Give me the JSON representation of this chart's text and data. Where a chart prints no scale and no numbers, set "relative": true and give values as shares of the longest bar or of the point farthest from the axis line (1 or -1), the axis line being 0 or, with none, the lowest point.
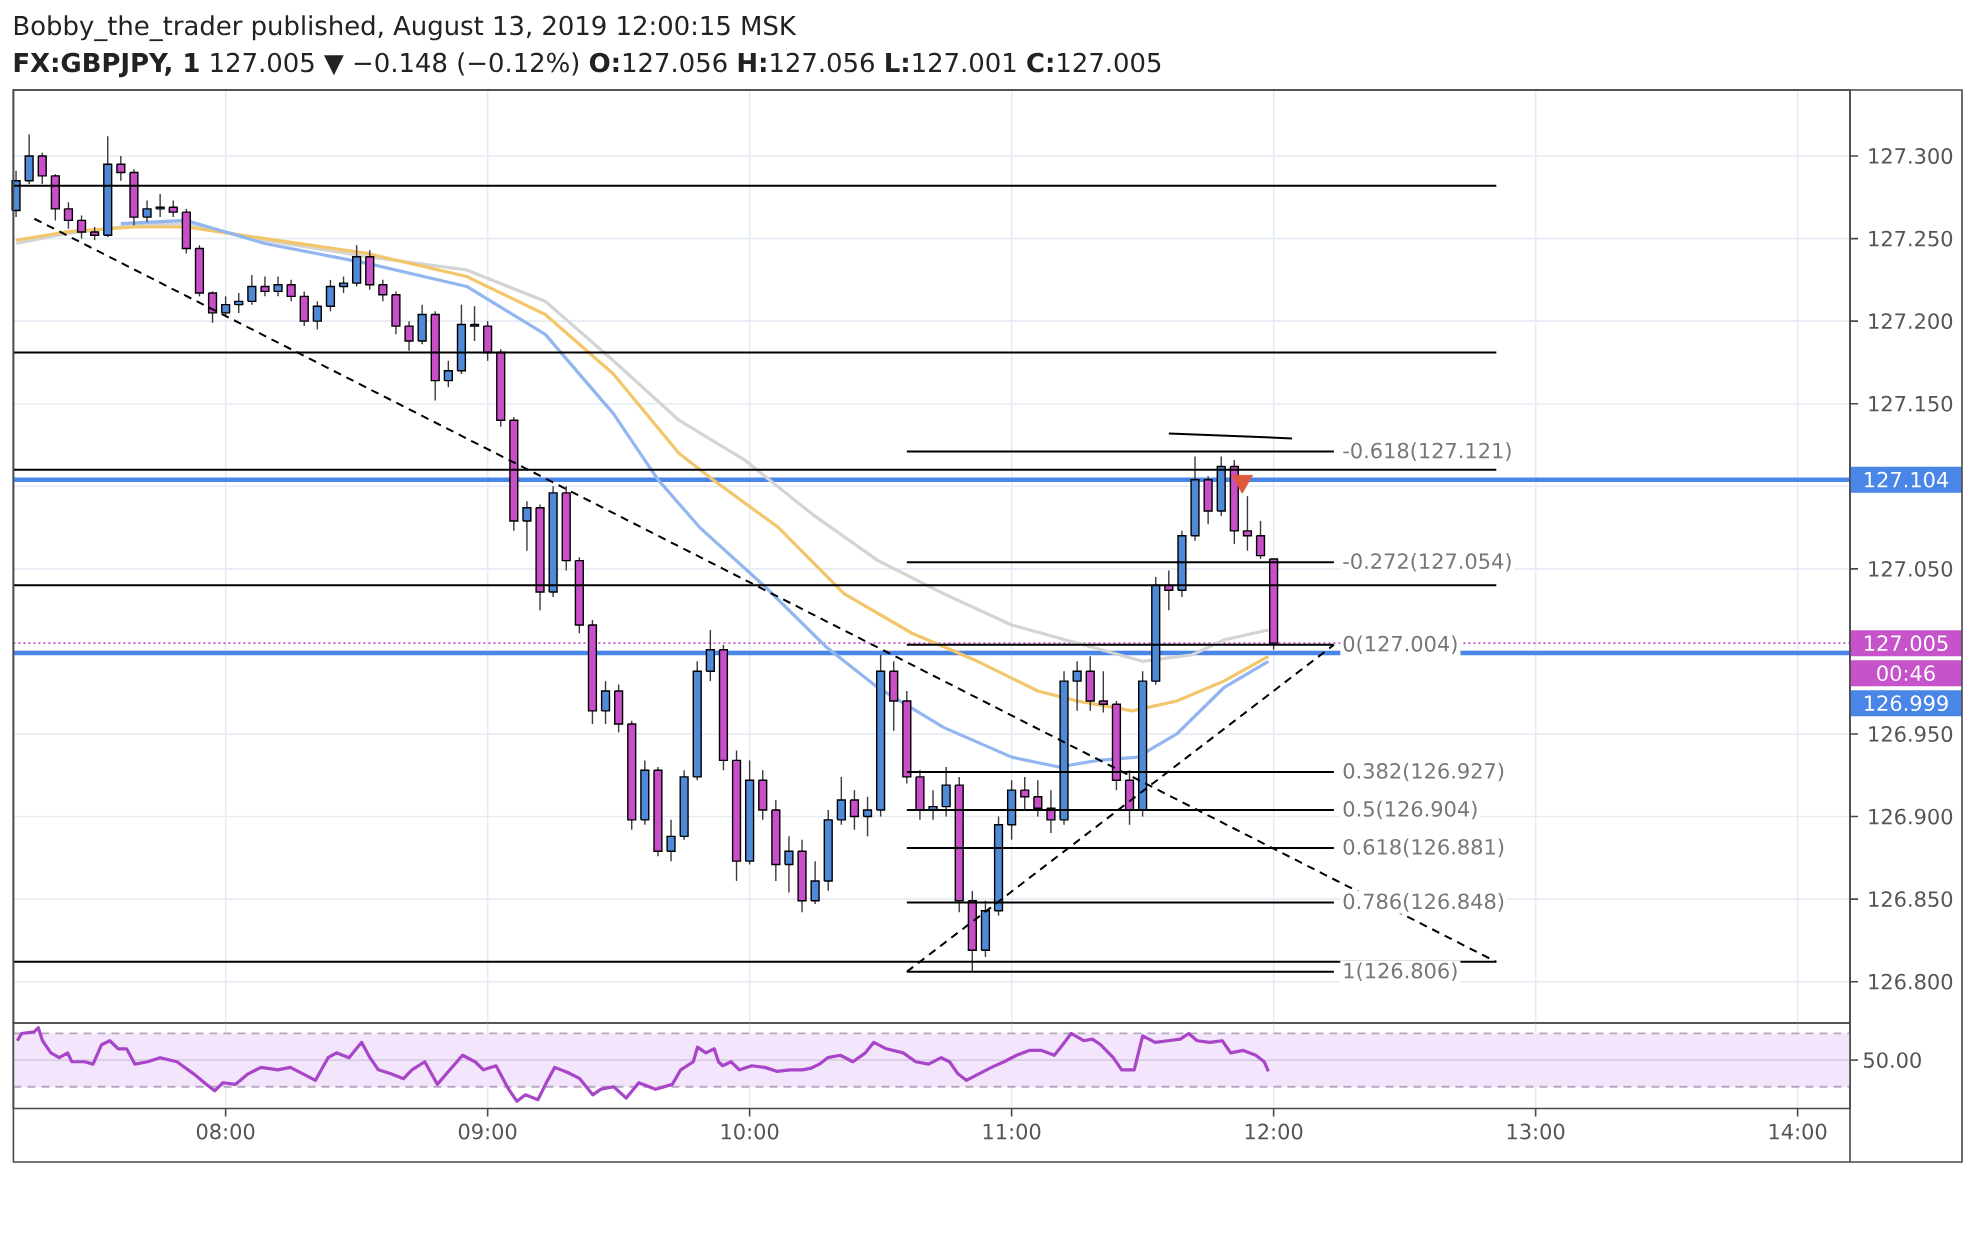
{
  "chart_data": [
    {
      "type": "candlestick",
      "title": "Bobby_the_trader published, August 13, 2019 12:00:15 MSK",
      "subtitle": "**FX:GBPJPY, 1** 127.005 ▼ −0.148 (−0.12%) **O:**127.056 **H:**127.056 **L:**127.001 **C:**127.005",
      "x": [
        7.2,
        7.25,
        7.3,
        7.35,
        7.4,
        7.45,
        7.5,
        7.55,
        7.6,
        7.65,
        7.7,
        7.75,
        7.8,
        7.85,
        7.9,
        7.95,
        8.0,
        8.05,
        8.1,
        8.15,
        8.2,
        8.25,
        8.3,
        8.35,
        8.4,
        8.45,
        8.5,
        8.55,
        8.6,
        8.65,
        8.7,
        8.75,
        8.8,
        8.85,
        8.9,
        8.95,
        9.0,
        9.05,
        9.1,
        9.15,
        9.2,
        9.25,
        9.3,
        9.35,
        9.4,
        9.45,
        9.5,
        9.55,
        9.6,
        9.65,
        9.7,
        9.75,
        9.8,
        9.85,
        9.9,
        9.95,
        10.0,
        10.05,
        10.1,
        10.15,
        10.2,
        10.25,
        10.3,
        10.35,
        10.4,
        10.45,
        10.5,
        10.55,
        10.6,
        10.65,
        10.7,
        10.75,
        10.8,
        10.85,
        10.9,
        10.95,
        11.0,
        11.05,
        11.1,
        11.15,
        11.2,
        11.25,
        11.3,
        11.35,
        11.4,
        11.45,
        11.5,
        11.55,
        11.6,
        11.65,
        11.7,
        11.75,
        11.8,
        11.85,
        11.9,
        11.95,
        12.0
      ],
      "ohlc": [
        [
          127.267,
          127.291,
          127.263,
          127.285
        ],
        [
          127.285,
          127.313,
          127.283,
          127.3
        ],
        [
          127.3,
          127.302,
          127.283,
          127.288
        ],
        [
          127.288,
          127.289,
          127.261,
          127.268
        ],
        [
          127.268,
          127.272,
          127.256,
          127.261
        ],
        [
          127.261,
          127.264,
          127.25,
          127.254
        ],
        [
          127.254,
          127.257,
          127.249,
          127.252
        ],
        [
          127.252,
          127.312,
          127.251,
          127.295
        ],
        [
          127.295,
          127.3,
          127.285,
          127.29
        ],
        [
          127.29,
          127.292,
          127.258,
          127.263
        ],
        [
          127.263,
          127.273,
          127.26,
          127.268
        ],
        [
          127.268,
          127.277,
          127.263,
          127.269
        ],
        [
          127.269,
          127.273,
          127.263,
          127.266
        ],
        [
          127.266,
          127.268,
          127.241,
          127.244
        ],
        [
          127.244,
          127.246,
          127.215,
          127.217
        ],
        [
          127.217,
          127.218,
          127.199,
          127.205
        ],
        [
          127.205,
          127.215,
          127.203,
          127.21
        ],
        [
          127.21,
          127.217,
          127.205,
          127.212
        ],
        [
          127.212,
          127.228,
          127.21,
          127.221
        ],
        [
          127.221,
          127.227,
          127.215,
          127.218
        ],
        [
          127.218,
          127.227,
          127.215,
          127.222
        ],
        [
          127.222,
          127.225,
          127.212,
          127.215
        ],
        [
          127.215,
          127.218,
          127.197,
          127.2
        ],
        [
          127.2,
          127.212,
          127.195,
          127.209
        ],
        [
          127.209,
          127.225,
          127.206,
          127.221
        ],
        [
          127.221,
          127.227,
          127.217,
          127.223
        ],
        [
          127.223,
          127.246,
          127.221,
          127.239
        ],
        [
          127.239,
          127.243,
          127.219,
          127.222
        ],
        [
          127.222,
          127.225,
          127.212,
          127.216
        ],
        [
          127.216,
          127.218,
          127.192,
          127.197
        ],
        [
          127.197,
          127.2,
          127.182,
          127.188
        ],
        [
          127.188,
          127.21,
          127.186,
          127.204
        ],
        [
          127.204,
          127.206,
          127.152,
          127.164
        ],
        [
          127.164,
          127.176,
          127.16,
          127.17
        ],
        [
          127.17,
          127.21,
          127.168,
          127.198
        ],
        [
          127.198,
          127.209,
          127.188,
          127.197
        ],
        [
          127.197,
          127.2,
          127.176,
          127.181
        ],
        [
          127.181,
          127.183,
          127.136,
          127.14
        ],
        [
          127.14,
          127.142,
          127.073,
          127.079
        ],
        [
          127.079,
          127.091,
          127.061,
          127.087
        ],
        [
          127.087,
          127.089,
          127.025,
          127.036
        ],
        [
          127.036,
          127.1,
          127.033,
          127.096
        ],
        [
          127.096,
          127.1,
          127.049,
          127.055
        ],
        [
          127.055,
          127.057,
          127.011,
          127.016
        ],
        [
          127.016,
          127.019,
          126.956,
          126.964
        ],
        [
          126.964,
          126.982,
          126.956,
          126.976
        ],
        [
          126.976,
          126.98,
          126.951,
          126.956
        ],
        [
          126.956,
          126.958,
          126.892,
          126.898
        ],
        [
          126.898,
          126.934,
          126.895,
          126.928
        ],
        [
          126.928,
          126.93,
          126.876,
          126.879
        ],
        [
          126.879,
          126.898,
          126.873,
          126.888
        ],
        [
          126.888,
          126.928,
          126.886,
          126.924
        ],
        [
          126.924,
          126.994,
          126.922,
          126.988
        ],
        [
          126.988,
          127.013,
          126.982,
          127.001
        ],
        [
          127.001,
          127.004,
          126.928,
          126.934
        ],
        [
          126.934,
          126.94,
          126.861,
          126.873
        ],
        [
          126.873,
          126.934,
          126.871,
          126.922
        ],
        [
          126.922,
          126.928,
          126.898,
          126.904
        ],
        [
          126.904,
          126.91,
          126.861,
          126.871
        ],
        [
          126.871,
          126.888,
          126.854,
          126.879
        ],
        [
          126.879,
          126.886,
          126.842,
          126.849
        ],
        [
          126.849,
          126.873,
          126.847,
          126.861
        ],
        [
          126.861,
          126.904,
          126.855,
          126.898
        ],
        [
          126.898,
          126.924,
          126.895,
          126.91
        ],
        [
          126.91,
          126.916,
          126.892,
          126.9
        ],
        [
          126.9,
          126.912,
          126.888,
          126.904
        ],
        [
          126.904,
          126.998,
          126.9,
          126.988
        ],
        [
          126.988,
          126.994,
          126.952,
          126.97
        ],
        [
          126.97,
          126.976,
          126.92,
          126.924
        ],
        [
          126.924,
          126.928,
          126.898,
          126.904
        ],
        [
          126.904,
          126.916,
          126.898,
          126.906
        ],
        [
          126.906,
          126.93,
          126.9,
          126.919
        ],
        [
          126.919,
          126.924,
          126.842,
          126.849
        ],
        [
          126.849,
          126.855,
          126.806,
          126.819
        ],
        [
          126.819,
          126.849,
          126.815,
          126.843
        ],
        [
          126.843,
          126.9,
          126.84,
          126.895
        ],
        [
          126.895,
          126.922,
          126.886,
          126.916
        ],
        [
          126.916,
          126.924,
          126.904,
          126.912
        ],
        [
          126.912,
          126.922,
          126.9,
          126.905
        ],
        [
          126.905,
          126.916,
          126.89,
          126.898
        ],
        [
          126.898,
          126.988,
          126.895,
          126.982
        ],
        [
          126.982,
          126.994,
          126.964,
          126.988
        ],
        [
          126.988,
          126.997,
          126.964,
          126.97
        ],
        [
          126.97,
          126.988,
          126.963,
          126.968
        ],
        [
          126.968,
          126.97,
          126.916,
          126.922
        ],
        [
          126.922,
          126.928,
          126.895,
          126.904
        ],
        [
          126.904,
          126.988,
          126.9,
          126.982
        ],
        [
          126.982,
          127.045,
          126.98,
          127.04
        ],
        [
          127.04,
          127.049,
          127.025,
          127.037
        ],
        [
          127.037,
          127.073,
          127.033,
          127.07
        ],
        [
          127.07,
          127.118,
          127.067,
          127.104
        ],
        [
          127.104,
          127.106,
          127.077,
          127.085
        ],
        [
          127.085,
          127.118,
          127.082,
          127.112
        ],
        [
          127.112,
          127.116,
          127.065,
          127.073
        ],
        [
          127.073,
          127.094,
          127.061,
          127.07
        ],
        [
          127.07,
          127.079,
          127.056,
          127.058
        ],
        [
          127.056,
          127.056,
          127.001,
          127.005
        ]
      ],
      "colors": [
        "#4f8ad9",
        "#4f8ad9",
        "#c84fc8",
        "#c84fc8",
        "#c84fc8",
        "#c84fc8",
        "#c84fc8",
        "#4f8ad9",
        "#c84fc8",
        "#c84fc8",
        "#4f8ad9",
        "#4f8ad9",
        "#c84fc8",
        "#c84fc8",
        "#c84fc8",
        "#c84fc8",
        "#4f8ad9",
        "#4f8ad9",
        "#4f8ad9",
        "#c84fc8",
        "#4f8ad9",
        "#c84fc8",
        "#c84fc8",
        "#4f8ad9",
        "#4f8ad9",
        "#4f8ad9",
        "#4f8ad9",
        "#c84fc8",
        "#c84fc8",
        "#c84fc8",
        "#c84fc8",
        "#4f8ad9",
        "#c84fc8",
        "#4f8ad9",
        "#4f8ad9",
        "#c84fc8",
        "#c84fc8",
        "#c84fc8",
        "#c84fc8",
        "#4f8ad9",
        "#c84fc8",
        "#4f8ad9",
        "#c84fc8",
        "#c84fc8",
        "#c84fc8",
        "#4f8ad9",
        "#c84fc8",
        "#c84fc8",
        "#4f8ad9",
        "#c84fc8",
        "#4f8ad9",
        "#4f8ad9",
        "#4f8ad9",
        "#4f8ad9",
        "#c84fc8",
        "#c84fc8",
        "#4f8ad9",
        "#c84fc8",
        "#c84fc8",
        "#4f8ad9",
        "#c84fc8",
        "#4f8ad9",
        "#4f8ad9",
        "#4f8ad9",
        "#c84fc8",
        "#4f8ad9",
        "#4f8ad9",
        "#c84fc8",
        "#c84fc8",
        "#c84fc8",
        "#4f8ad9",
        "#4f8ad9",
        "#c84fc8",
        "#c84fc8",
        "#4f8ad9",
        "#4f8ad9",
        "#4f8ad9",
        "#c84fc8",
        "#c84fc8",
        "#c84fc8",
        "#4f8ad9",
        "#4f8ad9",
        "#c84fc8",
        "#c84fc8",
        "#c84fc8",
        "#c84fc8",
        "#4f8ad9",
        "#4f8ad9",
        "#c84fc8",
        "#4f8ad9",
        "#4f8ad9",
        "#c84fc8",
        "#4f8ad9",
        "#c84fc8",
        "#c84fc8",
        "#c84fc8",
        "#c84fc8"
      ],
      "series": [
        {
          "type": "line",
          "color": "#d4d4d4",
          "x": [
            7.2,
            7.39,
            7.65,
            7.85,
            8.15,
            8.54,
            8.92,
            9.22,
            9.48,
            9.73,
            9.98,
            10.24,
            10.49,
            10.74,
            11.0,
            11.25,
            11.5,
            11.69,
            11.81,
            11.98
          ],
          "values": [
            127.247,
            127.253,
            127.258,
            127.259,
            127.249,
            127.239,
            127.231,
            127.212,
            127.176,
            127.14,
            127.116,
            127.083,
            127.055,
            127.035,
            127.016,
            127.005,
            126.994,
            126.998,
            127.007,
            127.013
          ]
        },
        {
          "type": "line",
          "color": "#f3c66b",
          "x": [
            7.2,
            7.39,
            7.65,
            7.85,
            8.15,
            8.54,
            8.92,
            9.22,
            9.48,
            9.73,
            9.86,
            10.11,
            10.36,
            10.62,
            10.87,
            11.1,
            11.25,
            11.46,
            11.63,
            11.81,
            11.98
          ],
          "values": [
            127.249,
            127.254,
            127.257,
            127.257,
            127.25,
            127.241,
            127.227,
            127.204,
            127.168,
            127.12,
            127.104,
            127.075,
            127.035,
            127.011,
            126.994,
            126.976,
            126.97,
            126.964,
            126.97,
            126.982,
            126.997
          ]
        },
        {
          "type": "line",
          "color": "#92b6f0",
          "x": [
            7.6,
            7.85,
            8.15,
            8.54,
            8.92,
            9.22,
            9.48,
            9.65,
            9.81,
            10.06,
            10.29,
            10.49,
            10.74,
            11.0,
            11.18,
            11.33,
            11.48,
            11.63,
            11.81,
            11.98
          ],
          "values": [
            127.259,
            127.261,
            127.247,
            127.235,
            127.221,
            127.192,
            127.144,
            127.104,
            127.075,
            127.039,
            127.003,
            126.978,
            126.954,
            126.936,
            126.93,
            126.934,
            126.936,
            126.95,
            126.978,
            126.994
          ]
        },
        {
          "type": "line",
          "color": "#000000",
          "x": [
            7.19,
            12.85
          ],
          "values": [
            127.282,
            127.282
          ]
        },
        {
          "type": "line",
          "color": "#000000",
          "x": [
            7.19,
            12.85
          ],
          "values": [
            127.181,
            127.181
          ]
        },
        {
          "type": "line",
          "color": "#000000",
          "x": [
            7.19,
            12.85
          ],
          "values": [
            127.11,
            127.11
          ]
        },
        {
          "type": "line",
          "color": "#000000",
          "x": [
            7.19,
            12.85
          ],
          "values": [
            127.04,
            127.04
          ]
        },
        {
          "type": "line",
          "color": "#000000",
          "x": [
            7.19,
            12.85
          ],
          "values": [
            126.812,
            126.812
          ]
        },
        {
          "type": "line",
          "name": "-0.618(127.121)",
          "color": "#000000",
          "x": [
            10.6,
            12.23
          ],
          "values": [
            127.121,
            127.121
          ]
        },
        {
          "type": "line",
          "name": "-0.272(127.054)",
          "color": "#000000",
          "x": [
            10.6,
            12.23
          ],
          "values": [
            127.054,
            127.054
          ]
        },
        {
          "type": "line",
          "name": "0(127.004)",
          "color": "#000000",
          "x": [
            10.6,
            12.23
          ],
          "values": [
            127.004,
            127.004
          ]
        },
        {
          "type": "line",
          "name": "0.382(126.927)",
          "color": "#000000",
          "x": [
            10.6,
            12.23
          ],
          "values": [
            126.927,
            126.927
          ]
        },
        {
          "type": "line",
          "name": "0.5(126.904)",
          "color": "#000000",
          "x": [
            10.6,
            12.23
          ],
          "values": [
            126.904,
            126.904
          ]
        },
        {
          "type": "line",
          "name": "0.618(126.881)",
          "color": "#000000",
          "x": [
            10.6,
            12.23
          ],
          "values": [
            126.881,
            126.881
          ]
        },
        {
          "type": "line",
          "name": "0.786(126.848)",
          "color": "#000000",
          "x": [
            10.6,
            12.23
          ],
          "values": [
            126.848,
            126.848
          ]
        },
        {
          "type": "line",
          "name": "1(126.806)",
          "color": "#000000",
          "x": [
            10.6,
            12.23
          ],
          "values": [
            126.806,
            126.806
          ]
        },
        {
          "type": "line",
          "color": "#000000",
          "x": [
            11.6,
            12.07
          ],
          "values": [
            127.132,
            127.129
          ]
        },
        {
          "type": "line",
          "color": "#000000",
          "line_style": "dashed",
          "x": [
            7.27,
            12.85
          ],
          "values": [
            127.262,
            126.812
          ]
        },
        {
          "type": "line",
          "color": "#000000",
          "line_style": "dashed",
          "x": [
            10.6,
            12.23
          ],
          "values": [
            126.806,
            127.004
          ]
        },
        {
          "type": "scatter",
          "color": "#e0573f",
          "marker": "triangle",
          "x": [
            11.88
          ],
          "values": [
            127.103
          ]
        }
      ],
      "ref_lines": [
        {
          "axis": "y",
          "value": 127.104,
          "label": "127.104",
          "color": "#4a86e8"
        },
        {
          "axis": "y",
          "value": 126.999,
          "label": "126.999",
          "color": "#4a86e8"
        },
        {
          "axis": "y",
          "value": 127.005,
          "label": "127.005",
          "color": "#c653c9",
          "line_style": "dotted"
        }
      ],
      "annotations": [
        "00:46"
      ],
      "xlim": [
        7.19,
        14.2
      ],
      "xticks": [
        8,
        9,
        10,
        11,
        12,
        13,
        14
      ],
      "ylim": [
        126.775,
        127.34
      ],
      "yticks": [
        {
          "value": 126.8,
          "label": "126.800"
        },
        {
          "value": 126.85,
          "label": "126.850"
        },
        {
          "value": 126.9,
          "label": "126.900"
        },
        {
          "value": 126.95,
          "label": "126.950"
        },
        {
          "value": 127.0,
          "label": null
        },
        {
          "value": 127.05,
          "label": "127.050"
        },
        {
          "value": 127.1,
          "label": null
        },
        {
          "value": 127.15,
          "label": "127.150"
        },
        {
          "value": 127.2,
          "label": "127.200"
        },
        {
          "value": 127.25,
          "label": "127.250"
        },
        {
          "value": 127.3,
          "label": "127.300"
        }
      ],
      "tick_labels": "y",
      "grid": true
    },
    {
      "type": "line",
      "relative": true,
      "color": "#a845c8",
      "x": [
        7.205,
        7.221,
        7.269,
        7.285,
        7.301,
        7.333,
        7.365,
        7.397,
        7.413,
        7.462,
        7.494,
        7.526,
        7.558,
        7.59,
        7.622,
        7.654,
        7.702,
        7.75,
        7.814,
        7.878,
        7.926,
        7.958,
        7.99,
        8.038,
        8.086,
        8.135,
        8.199,
        8.247,
        8.295,
        8.343,
        8.391,
        8.423,
        8.471,
        8.519,
        8.551,
        8.583,
        8.631,
        8.679,
        8.711,
        8.76,
        8.808,
        8.856,
        8.904,
        8.952,
        8.984,
        9.032,
        9.08,
        9.112,
        9.144,
        9.192,
        9.224,
        9.256,
        9.304,
        9.352,
        9.401,
        9.433,
        9.481,
        9.529,
        9.577,
        9.641,
        9.705,
        9.737,
        9.785,
        9.801,
        9.833,
        9.865,
        9.881,
        9.897,
        9.929,
        9.961,
        10.009,
        10.058,
        10.106,
        10.154,
        10.202,
        10.234,
        10.266,
        10.298,
        10.346,
        10.394,
        10.442,
        10.474,
        10.522,
        10.586,
        10.634,
        10.683,
        10.731,
        10.763,
        10.795,
        10.827,
        10.875,
        10.923,
        10.971,
        11.019,
        11.067,
        11.115,
        11.163,
        11.195,
        11.227,
        11.275,
        11.308,
        11.34,
        11.388,
        11.42,
        11.468,
        11.5,
        11.548,
        11.596,
        11.644,
        11.676,
        11.708,
        11.756,
        11.804,
        11.836,
        11.884,
        11.932,
        11.964,
        11.98
      ],
      "values": [
        0.84,
        0.93,
        0.95,
        1.0,
        0.84,
        0.69,
        0.63,
        0.69,
        0.58,
        0.58,
        0.55,
        0.79,
        0.84,
        0.74,
        0.74,
        0.55,
        0.58,
        0.63,
        0.58,
        0.43,
        0.3,
        0.22,
        0.32,
        0.3,
        0.43,
        0.51,
        0.48,
        0.51,
        0.43,
        0.35,
        0.63,
        0.69,
        0.63,
        0.82,
        0.63,
        0.48,
        0.43,
        0.37,
        0.48,
        0.58,
        0.3,
        0.48,
        0.66,
        0.58,
        0.48,
        0.53,
        0.24,
        0.09,
        0.17,
        0.11,
        0.32,
        0.51,
        0.45,
        0.37,
        0.17,
        0.24,
        0.27,
        0.13,
        0.32,
        0.24,
        0.3,
        0.48,
        0.58,
        0.76,
        0.69,
        0.74,
        0.58,
        0.53,
        0.58,
        0.48,
        0.53,
        0.51,
        0.46,
        0.48,
        0.48,
        0.5,
        0.55,
        0.63,
        0.66,
        0.58,
        0.69,
        0.82,
        0.74,
        0.69,
        0.58,
        0.55,
        0.63,
        0.58,
        0.43,
        0.35,
        0.43,
        0.51,
        0.58,
        0.66,
        0.72,
        0.72,
        0.66,
        0.79,
        0.93,
        0.84,
        0.86,
        0.79,
        0.63,
        0.48,
        0.48,
        0.9,
        0.82,
        0.84,
        0.86,
        0.93,
        0.84,
        0.82,
        0.84,
        0.69,
        0.72,
        0.66,
        0.58,
        0.46
      ],
      "xlim": [
        7.19,
        14.2
      ],
      "xticks": [
        {
          "value": 8,
          "label": "08:00"
        },
        {
          "value": 9,
          "label": "09:00"
        },
        {
          "value": 10,
          "label": "10:00"
        },
        {
          "value": 11,
          "label": "11:00"
        },
        {
          "value": 12,
          "label": "12:00"
        },
        {
          "value": 13,
          "label": "13:00"
        },
        {
          "value": 14,
          "label": "14:00"
        }
      ],
      "tick_labels": "x",
      "grid": "x",
      "bands": [
        {
          "axis": "y",
          "from": 0.27,
          "to": 0.93,
          "color": "#f3e5fb"
        }
      ],
      "ref_lines": [
        {
          "axis": "y",
          "value": 0.93,
          "color": "#b3a8bd",
          "line_style": "dashed"
        },
        {
          "axis": "y",
          "value": 0.27,
          "color": "#b3a8bd",
          "line_style": "dashed"
        },
        {
          "axis": "y",
          "value": 0.6,
          "color": "#d8cce2"
        }
      ],
      "annotations": [
        "50.00"
      ]
    }
  ]
}
